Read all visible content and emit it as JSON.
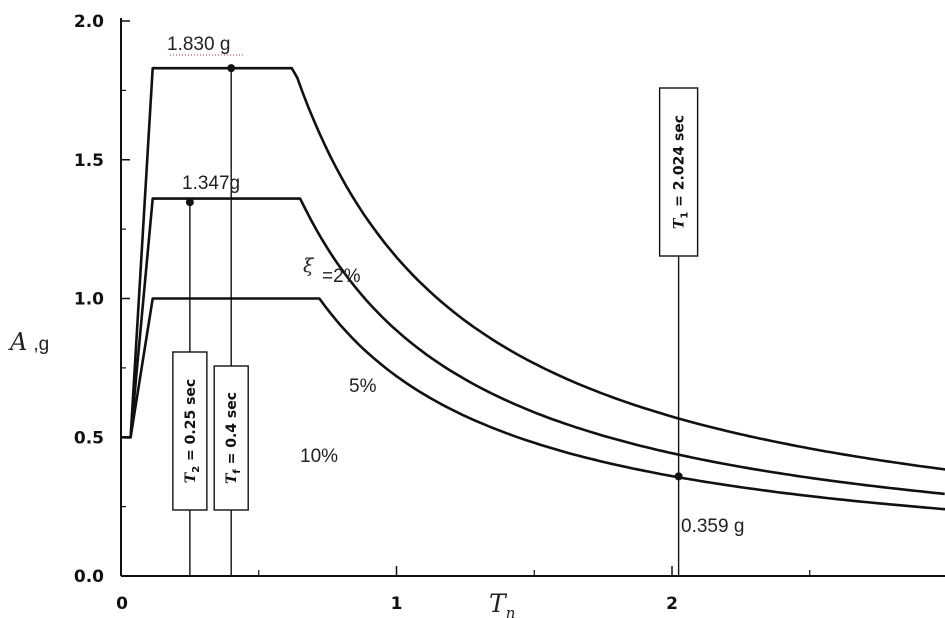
{
  "chart_data": {
    "type": "line",
    "xlim": [
      0,
      3
    ],
    "ylim": [
      0,
      2
    ],
    "x_ticks": [
      "0",
      "1",
      "2"
    ],
    "y_ticks": [
      "0.0",
      "0.5",
      "1.0",
      "1.5",
      "2.0"
    ],
    "ylabel": {
      "symbol": "A",
      "unit": ",g"
    },
    "xlabel": {
      "symbol": "T",
      "subscript": "n"
    },
    "xi_symbol": "ξ",
    "series": [
      {
        "label": "=2%",
        "points": [
          [
            0,
            0.5
          ],
          [
            0.035,
            0.5
          ],
          [
            0.115,
            1.83
          ],
          [
            0.62,
            1.83
          ],
          [
            0.8,
            1.435
          ],
          [
            1.0,
            1.148
          ],
          [
            1.5,
            0.765
          ],
          [
            2.024,
            0.567
          ],
          [
            2.5,
            0.459
          ],
          [
            3.0,
            0.383
          ]
        ]
      },
      {
        "label": "5%",
        "points": [
          [
            0,
            0.5
          ],
          [
            0.035,
            0.5
          ],
          [
            0.115,
            1.36
          ],
          [
            0.65,
            1.36
          ],
          [
            0.8,
            1.105
          ],
          [
            1.0,
            0.884
          ],
          [
            1.5,
            0.589
          ],
          [
            2.024,
            0.437
          ],
          [
            2.5,
            0.354
          ],
          [
            3.0,
            0.295
          ]
        ]
      },
      {
        "label": "10%",
        "points": [
          [
            0,
            0.5
          ],
          [
            0.035,
            0.5
          ],
          [
            0.115,
            1.0
          ],
          [
            0.72,
            1.0
          ],
          [
            0.8,
            0.9
          ],
          [
            1.0,
            0.72
          ],
          [
            1.5,
            0.48
          ],
          [
            2.024,
            0.359
          ],
          [
            2.5,
            0.288
          ],
          [
            3.0,
            0.24
          ]
        ]
      }
    ],
    "markers": [
      {
        "x": 0.25,
        "y": 1.347,
        "text": "1.347g"
      },
      {
        "x": 0.4,
        "y": 1.83,
        "text": "1.830 g"
      },
      {
        "x": 2.024,
        "y": 0.359,
        "text": "0.359 g"
      }
    ],
    "period_boxes": [
      {
        "x": 0.25,
        "sym": "T",
        "sub": "2",
        "rest": " = 0.25 sec"
      },
      {
        "x": 0.4,
        "sym": "T",
        "sub": "f",
        "rest": " = 0.4 sec"
      },
      {
        "x": 2.024,
        "sym": "T",
        "sub": "1",
        "rest": " = 2.024 sec"
      }
    ]
  }
}
